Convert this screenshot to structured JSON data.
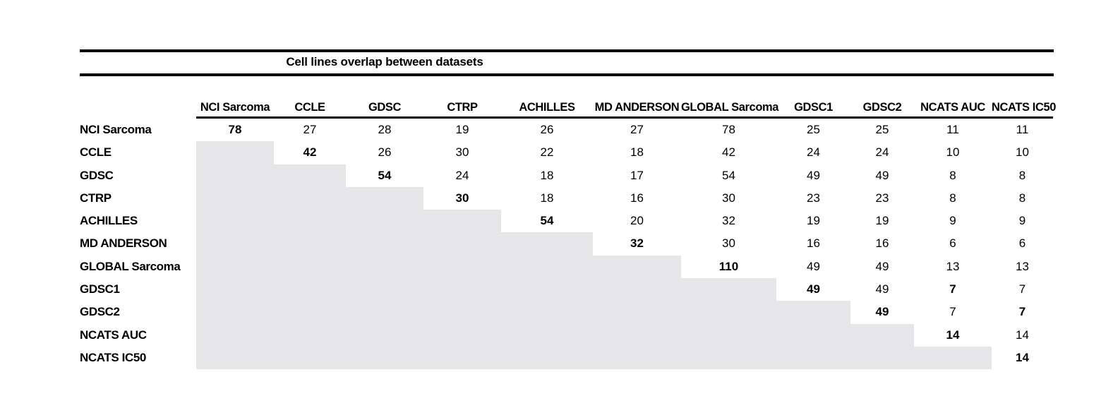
{
  "title": "Cell lines overlap between datasets",
  "colors": {
    "shade": "#e6e5e7",
    "text": "#000000",
    "rule": "#000000",
    "background": "#ffffff"
  },
  "chart_data": {
    "type": "table",
    "title": "Cell lines overlap between datasets",
    "description": "Upper-triangular overlap matrix of cell line counts between datasets; lower triangle is shaded empty",
    "columns": [
      "NCI Sarcoma",
      "CCLE",
      "GDSC",
      "CTRP",
      "ACHILLES",
      "MD ANDERSON",
      "GLOBAL Sarcoma",
      "GDSC1",
      "GDSC2",
      "NCATS AUC",
      "NCATS IC50"
    ],
    "rows": [
      "NCI Sarcoma",
      "CCLE",
      "GDSC",
      "CTRP",
      "ACHILLES",
      "MD ANDERSON",
      "GLOBAL Sarcoma",
      "GDSC1",
      "GDSC2",
      "NCATS AUC",
      "NCATS IC50"
    ],
    "matrix": [
      [
        78,
        27,
        28,
        19,
        26,
        27,
        78,
        25,
        25,
        11,
        11
      ],
      [
        null,
        42,
        26,
        30,
        22,
        18,
        42,
        24,
        24,
        10,
        10
      ],
      [
        null,
        null,
        54,
        24,
        18,
        17,
        54,
        49,
        49,
        8,
        8
      ],
      [
        null,
        null,
        null,
        30,
        18,
        16,
        30,
        23,
        23,
        8,
        8
      ],
      [
        null,
        null,
        null,
        null,
        54,
        20,
        32,
        19,
        19,
        9,
        9
      ],
      [
        null,
        null,
        null,
        null,
        null,
        32,
        30,
        16,
        16,
        6,
        6
      ],
      [
        null,
        null,
        null,
        null,
        null,
        null,
        110,
        49,
        49,
        13,
        13
      ],
      [
        null,
        null,
        null,
        null,
        null,
        null,
        null,
        49,
        49,
        7,
        7
      ],
      [
        null,
        null,
        null,
        null,
        null,
        null,
        null,
        null,
        49,
        7,
        7
      ],
      [
        null,
        null,
        null,
        null,
        null,
        null,
        null,
        null,
        null,
        14,
        14
      ],
      [
        null,
        null,
        null,
        null,
        null,
        null,
        null,
        null,
        null,
        null,
        14
      ]
    ],
    "bold_cells": [
      [
        0,
        0
      ],
      [
        1,
        1
      ],
      [
        2,
        2
      ],
      [
        3,
        3
      ],
      [
        4,
        4
      ],
      [
        5,
        5
      ],
      [
        6,
        6
      ],
      [
        7,
        7
      ],
      [
        8,
        8
      ],
      [
        9,
        9
      ],
      [
        10,
        10
      ],
      [
        7,
        9
      ],
      [
        8,
        10
      ]
    ],
    "layout": {
      "legend": "none",
      "grid": "off",
      "shaded_region": "lower-triangle"
    }
  }
}
